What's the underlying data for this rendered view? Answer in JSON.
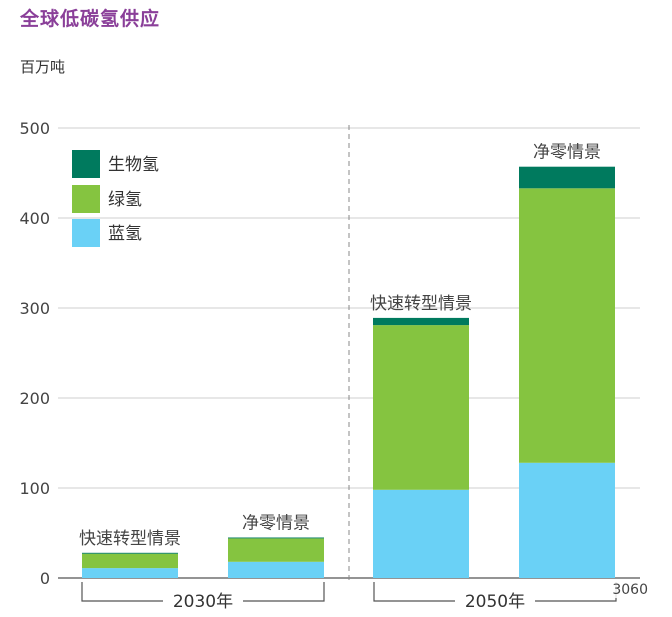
{
  "title": "全球低碳氢供应",
  "unit": "百万吨",
  "watermark": "3060",
  "colors": {
    "生物氢": "#007a5e",
    "绿氢": "#85c440",
    "蓝氢": "#6ad1f6",
    "title": "#8a3f99"
  },
  "chart_data": {
    "type": "bar",
    "stacked": true,
    "ylim": [
      0,
      500
    ],
    "yticks": [
      0,
      100,
      200,
      300,
      400,
      500
    ],
    "grid": true,
    "legend_position": "top-left",
    "legend": [
      "生物氢",
      "绿氢",
      "蓝氢"
    ],
    "groups": [
      {
        "label": "2030年",
        "categories": [
          "快速转型情景",
          "净零情景"
        ]
      },
      {
        "label": "2050年",
        "categories": [
          "快速转型情景",
          "净零情景"
        ]
      }
    ],
    "categories": [
      "快速转型情景",
      "净零情景",
      "快速转型情景",
      "净零情景"
    ],
    "series": [
      {
        "name": "蓝氢",
        "values": [
          11,
          18,
          98,
          128
        ]
      },
      {
        "name": "绿氢",
        "values": [
          16,
          26,
          183,
          305
        ]
      },
      {
        "name": "生物氢",
        "values": [
          1,
          1,
          8,
          24
        ]
      }
    ]
  }
}
